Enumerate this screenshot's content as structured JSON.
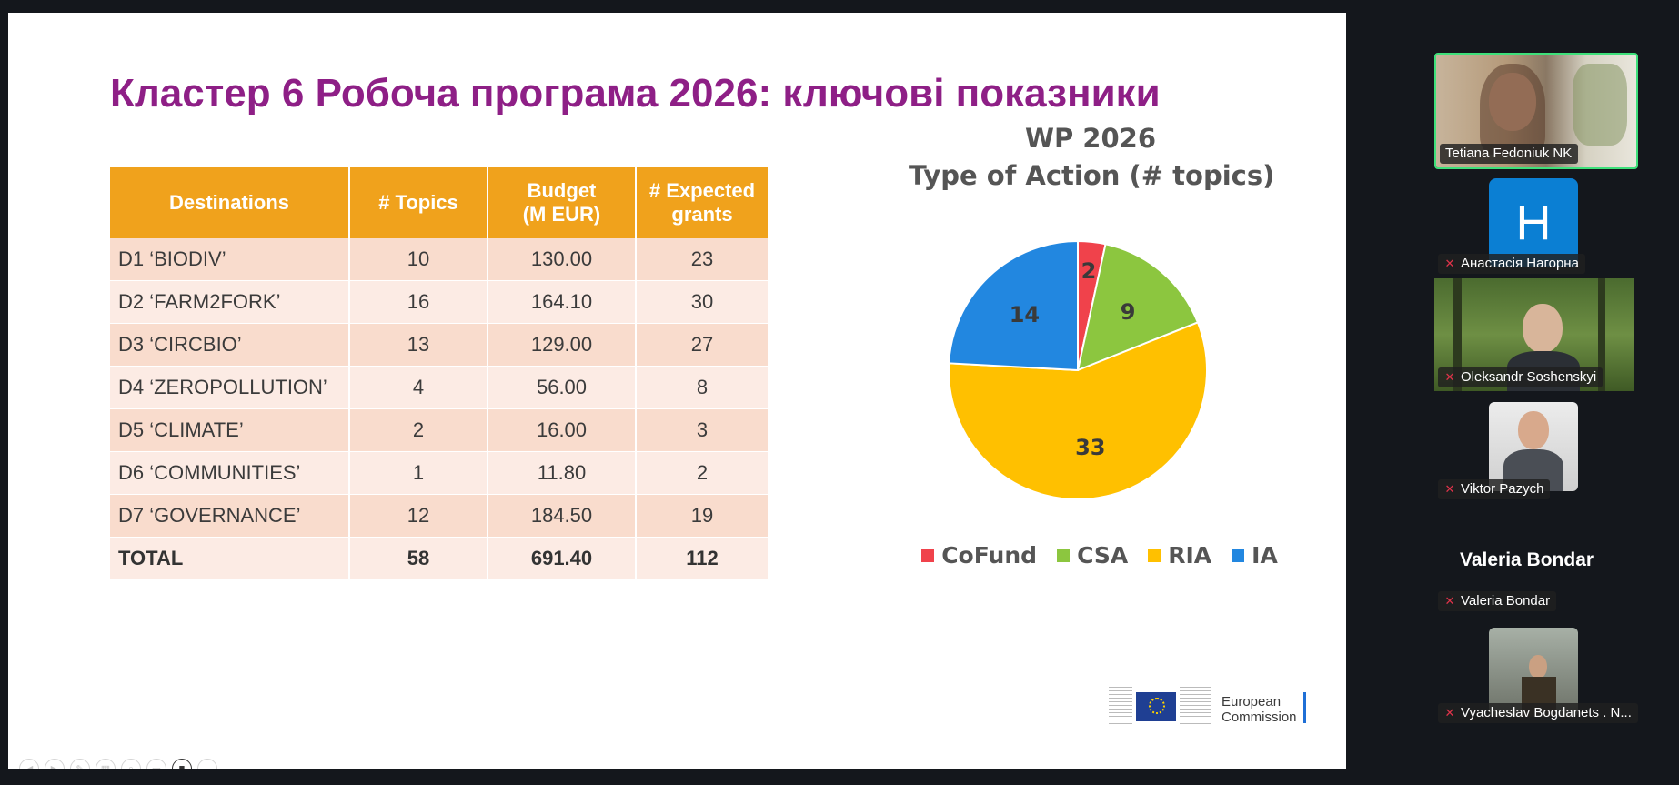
{
  "slide": {
    "title": "Кластер 6 Робоча програма 2026: ключові показники",
    "table": {
      "headers": [
        "Destinations",
        "# Topics",
        "Budget\n(M EUR)",
        "# Expected\ngrants"
      ],
      "rows": [
        [
          "D1 ‘BIODIV’",
          "10",
          "130.00",
          "23"
        ],
        [
          "D2 ‘FARM2FORK’",
          "16",
          "164.10",
          "30"
        ],
        [
          "D3 ‘CIRCBIO’",
          "13",
          "129.00",
          "27"
        ],
        [
          "D4 ‘ZEROPOLLUTION’",
          "4",
          "56.00",
          "8"
        ],
        [
          "D5 ‘CLIMATE’",
          "2",
          "16.00",
          "3"
        ],
        [
          "D6 ‘COMMUNITIES’",
          "1",
          "11.80",
          "2"
        ],
        [
          "D7 ‘GOVERNANCE’",
          "12",
          "184.50",
          "19"
        ]
      ],
      "total": [
        "TOTAL",
        "58",
        "691.40",
        "112"
      ]
    },
    "logo": {
      "line1": "European",
      "line2": "Commission"
    }
  },
  "chart_data": {
    "type": "pie",
    "title": "WP 2026",
    "subtitle": "Type of Action (# topics)",
    "categories": [
      "CoFund",
      "CSA",
      "RIA",
      "IA"
    ],
    "values": [
      2,
      9,
      33,
      14
    ],
    "colors": [
      "#f0424b",
      "#8cc63f",
      "#ffc000",
      "#2287e0"
    ],
    "legend_position": "bottom"
  },
  "participants": [
    {
      "name": "Tetiana Fedoniuk NK",
      "muted": false,
      "active_speaker": true,
      "video": true
    },
    {
      "name": "Анастасія Нагорна",
      "muted": true,
      "avatar_letter": "H",
      "video": false
    },
    {
      "name": "Oleksandr Soshenskyi",
      "muted": true,
      "video": true
    },
    {
      "name": "Viktor Pazych",
      "muted": true,
      "video": true
    },
    {
      "name": "Valeria Bondar",
      "muted": true,
      "video": false,
      "display_name": "Valeria Bondar"
    },
    {
      "name": "Vyacheslav Bogdanets . N...",
      "muted": true,
      "video": true
    }
  ],
  "colors": {
    "title": "#8e1f86",
    "header": "#f0a21c",
    "row_a": "#f9dccd",
    "row_b": "#fcebe4",
    "active_border": "#3ee07a",
    "background": "#14171c"
  }
}
